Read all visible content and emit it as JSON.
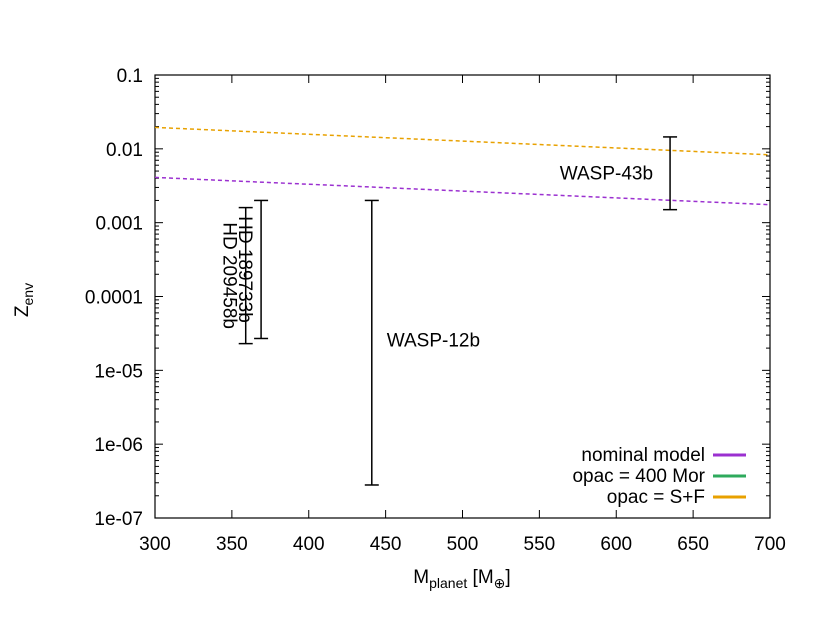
{
  "chart_data": {
    "type": "line",
    "xlabel": {
      "main": "M",
      "sub": "planet",
      "unit_open": " [M",
      "unit_sub": "⊕",
      "unit_close": "]"
    },
    "ylabel": {
      "main": "Z",
      "sub": "env"
    },
    "xlim": [
      300,
      700
    ],
    "ylim": [
      1e-07,
      0.1
    ],
    "yscale": "log",
    "x_ticks": [
      300,
      350,
      400,
      450,
      500,
      550,
      600,
      650,
      700
    ],
    "x_tick_labels": [
      "300",
      "350",
      "400",
      "450",
      "500",
      "550",
      "600",
      "650",
      "700"
    ],
    "y_ticks": [
      1e-07,
      1e-06,
      1e-05,
      0.0001,
      0.001,
      0.01,
      0.1
    ],
    "y_tick_labels": [
      "1e-07",
      "1e-06",
      "1e-05",
      "0.0001",
      "0.001",
      "0.01",
      "0.1"
    ],
    "series": [
      {
        "name": "nominal model",
        "color": "#9b30d0",
        "dashed": true,
        "x": [
          300,
          700
        ],
        "y": [
          0.0041,
          0.00175
        ]
      },
      {
        "name": "opac = 400 Mor",
        "color": "#2eaa5c",
        "dashed": true,
        "x": [],
        "y": []
      },
      {
        "name": "opac = S+F",
        "color": "#e8a100",
        "dashed": true,
        "x": [
          300,
          700
        ],
        "y": [
          0.0195,
          0.0083
        ]
      }
    ],
    "error_bars": [
      {
        "label": "HD 209458b",
        "x": 359,
        "ylow": 2.3e-05,
        "yhigh": 0.0016,
        "label_rotation": 90
      },
      {
        "label": "HD 189733b",
        "x": 369,
        "ylow": 2.7e-05,
        "yhigh": 0.002,
        "label_rotation": 90
      },
      {
        "label": "WASP-12b",
        "x": 441,
        "ylow": 2.8e-07,
        "yhigh": 0.002,
        "label_rotation": 0
      },
      {
        "label": "WASP-43b",
        "x": 635,
        "ylow": 0.0015,
        "yhigh": 0.0145,
        "label_rotation": 0
      }
    ],
    "legend_position": "bottom-right",
    "grid": false
  }
}
